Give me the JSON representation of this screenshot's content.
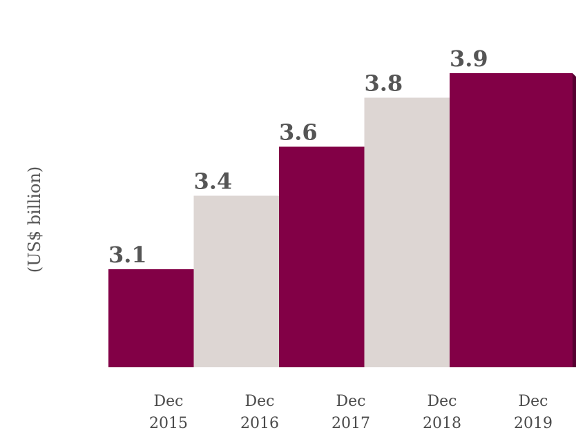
{
  "chart_data": {
    "type": "bar",
    "categories": [
      [
        "Dec",
        "2015"
      ],
      [
        "Dec",
        "2016"
      ],
      [
        "Dec",
        "2017"
      ],
      [
        "Dec",
        "2018"
      ],
      [
        "Dec",
        "2019"
      ]
    ],
    "values": [
      3.1,
      3.4,
      3.6,
      3.8,
      3.9
    ],
    "value_labels": [
      "3.1",
      "3.4",
      "3.6",
      "3.8",
      "3.9"
    ],
    "title": "",
    "xlabel": "",
    "ylabel": "(US$ billion)",
    "ylim": [
      2.7,
      4.0
    ],
    "grid": false,
    "legend": "none",
    "colors": {
      "primary": "#820046",
      "primary_side": "#560030",
      "secondary": "#ddd6d3",
      "secondary_side": "#a9a2a0"
    }
  }
}
